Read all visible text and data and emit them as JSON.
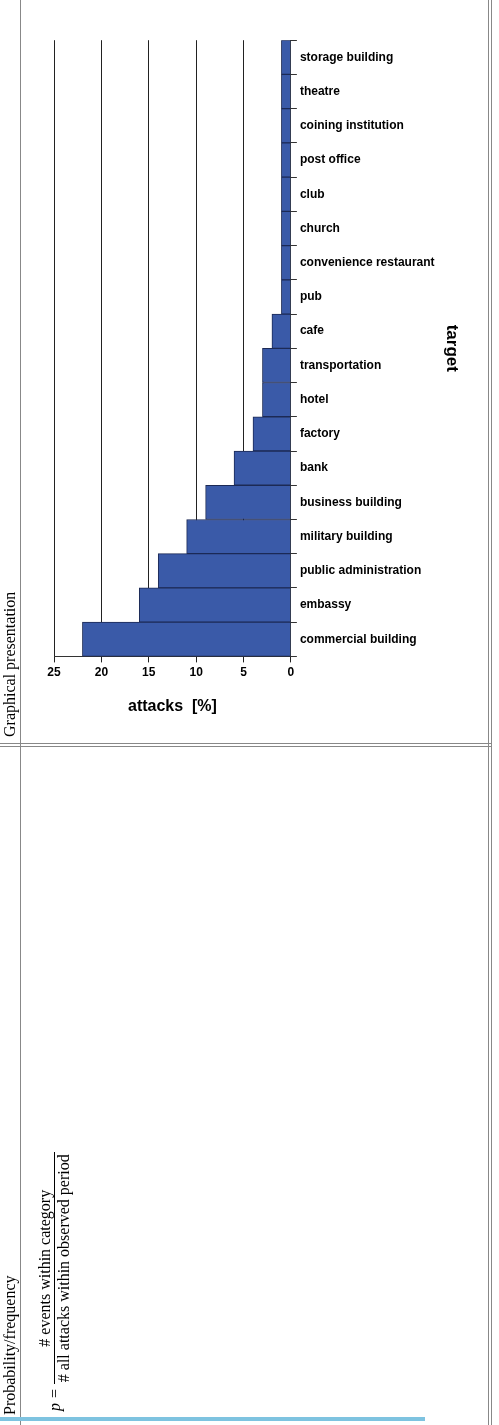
{
  "chart_data": {
    "type": "bar",
    "orientation": "horizontal",
    "categories": [
      "storage building",
      "theatre",
      "coining institution",
      "post office",
      "club",
      "church",
      "convenience restaurant",
      "pub",
      "cafe",
      "transportation",
      "hotel",
      "factory",
      "bank",
      "business building",
      "military building",
      "public administration",
      "embassy",
      "commercial building"
    ],
    "values": [
      1,
      1,
      1,
      1,
      1,
      1,
      1,
      1,
      2,
      3,
      3,
      4,
      6,
      9,
      11,
      14,
      16,
      22
    ],
    "color": "#3a5aa8",
    "ylabel": "target",
    "xlabel": "attacks  [%]",
    "xlim": [
      25,
      0
    ],
    "xticks": [
      25,
      20,
      15,
      10,
      5,
      0
    ],
    "grid": "x",
    "annotations": [
      "Probability/frequency",
      "Graphical presentation",
      "p =",
      "# events within category",
      "# all attacks within observed period"
    ]
  }
}
